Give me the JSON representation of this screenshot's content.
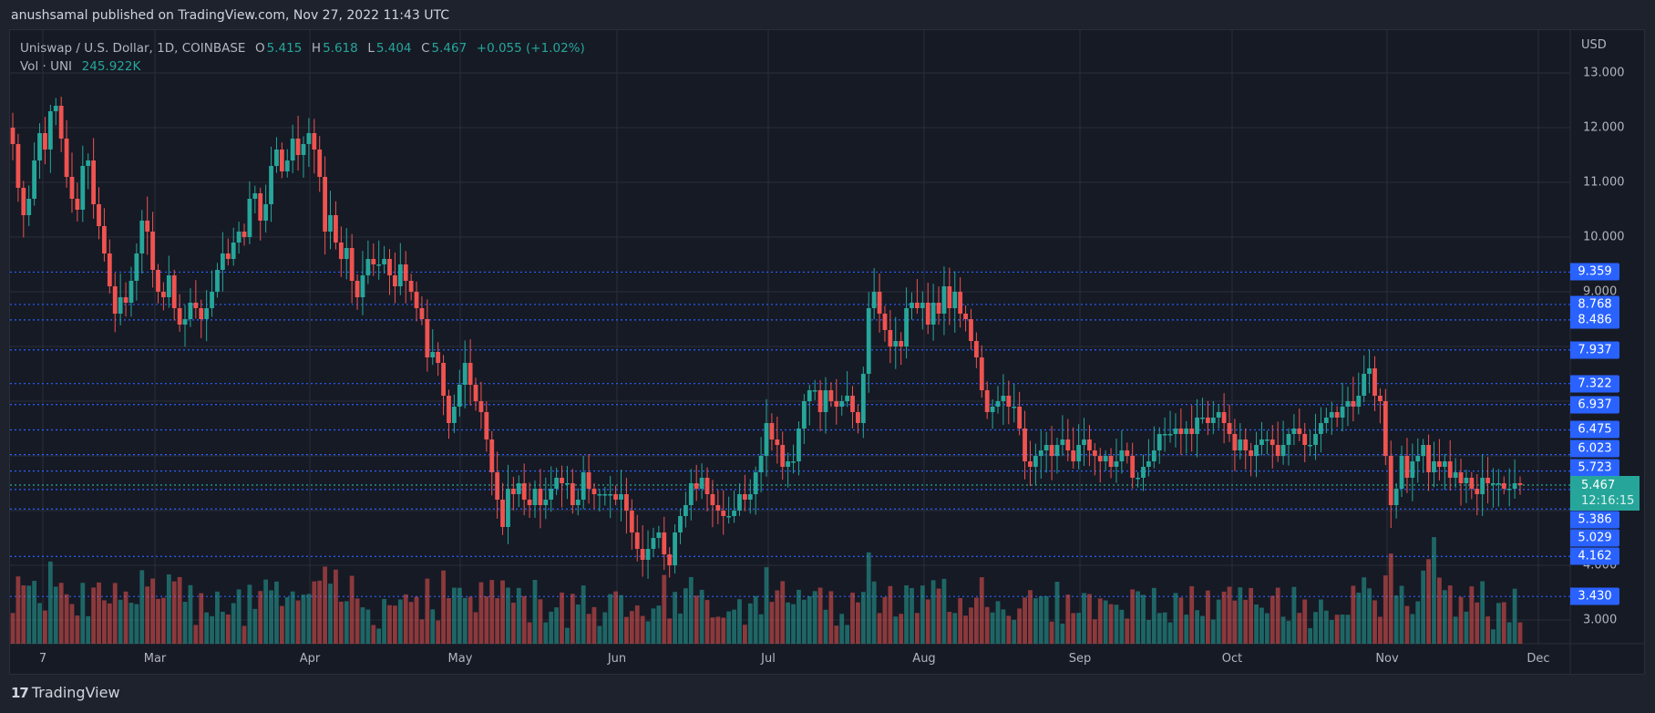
{
  "header": {
    "published": "anushsamal published on TradingView.com, Nov 27, 2022 11:43 UTC"
  },
  "legend": {
    "symbol": "Uniswap / U.S. Dollar, 1D, COINBASE",
    "o_label": "O",
    "o": "5.415",
    "h_label": "H",
    "h": "5.618",
    "l_label": "L",
    "l": "5.404",
    "c_label": "C",
    "c": "5.467",
    "change": "+0.055 (+1.02%)",
    "vol_label": "Vol · UNI",
    "vol": "245.922K"
  },
  "axis": {
    "currency": "USD",
    "price_ticks": [
      "13.000",
      "12.000",
      "11.000",
      "10.000",
      "9.000",
      "4.000",
      "3.000"
    ],
    "time_ticks": [
      "7",
      "Mar",
      "Apr",
      "May",
      "Jun",
      "Jul",
      "Aug",
      "Sep",
      "Oct",
      "Nov",
      "Dec"
    ]
  },
  "current": {
    "price": "5.467",
    "countdown": "12:16:15"
  },
  "levels": [
    "9.359",
    "8.768",
    "8.486",
    "7.937",
    "7.322",
    "6.937",
    "6.475",
    "6.023",
    "5.723",
    "5.386",
    "5.029",
    "4.162",
    "3.430"
  ],
  "footer": {
    "brand": "TradingView",
    "logo": "17"
  },
  "colors": {
    "up": "#26a69a",
    "down": "#ef5350",
    "level": "#2962ff",
    "bg": "#161a25",
    "outer": "#1e222d",
    "grid": "#2a2e39"
  },
  "chart_data": {
    "type": "candlestick",
    "title": "Uniswap / U.S. Dollar, 1D, COINBASE",
    "ylabel": "USD",
    "ylim": [
      2.5,
      13.5
    ],
    "x_range": [
      "2022-02-07",
      "2022-11-27"
    ],
    "categories": [
      "7",
      "Mar",
      "Apr",
      "May",
      "Jun",
      "Jul",
      "Aug",
      "Sep",
      "Oct",
      "Nov",
      "Dec"
    ],
    "closes": [
      11.7,
      10.9,
      10.4,
      10.7,
      11.4,
      11.9,
      11.6,
      12.3,
      12.4,
      11.8,
      11.1,
      10.7,
      10.5,
      11.3,
      11.4,
      10.6,
      10.2,
      9.7,
      9.1,
      8.6,
      8.9,
      8.8,
      9.2,
      9.7,
      10.3,
      10.1,
      9.4,
      9.0,
      8.9,
      9.3,
      8.7,
      8.4,
      8.5,
      8.8,
      8.7,
      8.5,
      8.7,
      9.0,
      9.4,
      9.7,
      9.6,
      9.9,
      10.1,
      10.0,
      10.7,
      10.8,
      10.3,
      10.6,
      11.3,
      11.6,
      11.2,
      11.4,
      11.8,
      11.5,
      11.7,
      11.9,
      11.6,
      11.1,
      10.1,
      10.4,
      9.9,
      9.6,
      9.8,
      9.2,
      8.9,
      9.3,
      9.6,
      9.5,
      9.5,
      9.6,
      9.3,
      9.1,
      9.5,
      9.2,
      9.0,
      8.7,
      8.5,
      7.8,
      7.9,
      7.7,
      7.1,
      6.6,
      6.9,
      7.3,
      7.7,
      7.3,
      7.0,
      6.8,
      6.3,
      5.7,
      5.2,
      4.7,
      5.4,
      5.3,
      5.5,
      5.2,
      5.1,
      5.4,
      5.1,
      5.2,
      5.4,
      5.6,
      5.5,
      5.5,
      5.1,
      5.2,
      5.7,
      5.4,
      5.3,
      5.3,
      5.3,
      5.3,
      5.2,
      5.3,
      5.0,
      4.6,
      4.3,
      4.1,
      4.3,
      4.5,
      4.6,
      4.2,
      4.0,
      4.6,
      4.9,
      5.1,
      5.5,
      5.4,
      5.6,
      5.3,
      5.1,
      5.0,
      4.9,
      4.9,
      5.0,
      5.3,
      5.2,
      5.3,
      5.7,
      6.0,
      6.6,
      6.3,
      6.2,
      5.8,
      5.9,
      5.9,
      6.5,
      7.0,
      7.2,
      7.2,
      6.8,
      7.2,
      7.0,
      6.9,
      7.0,
      7.1,
      6.8,
      6.6,
      7.5,
      8.7,
      9.0,
      8.6,
      8.3,
      8.0,
      8.1,
      8.0,
      8.7,
      8.8,
      8.7,
      8.8,
      8.4,
      8.8,
      8.6,
      9.1,
      8.7,
      9.0,
      8.6,
      8.5,
      8.1,
      7.8,
      7.2,
      6.8,
      6.9,
      7.0,
      7.1,
      6.9,
      6.9,
      6.5,
      5.9,
      5.8,
      6.0,
      6.1,
      6.2,
      6.0,
      6.2,
      6.3,
      6.1,
      5.9,
      6.2,
      6.3,
      6.1,
      6.0,
      5.9,
      6.0,
      5.8,
      5.9,
      6.1,
      6.0,
      5.6,
      5.6,
      5.8,
      5.9,
      6.1,
      6.4,
      6.4,
      6.4,
      6.5,
      6.4,
      6.5,
      6.4,
      6.7,
      6.7,
      6.6,
      6.7,
      6.8,
      6.6,
      6.4,
      6.1,
      6.3,
      6.1,
      6.0,
      6.2,
      6.3,
      6.3,
      6.2,
      6.0,
      6.2,
      6.4,
      6.5,
      6.4,
      6.2,
      6.2,
      6.4,
      6.6,
      6.7,
      6.8,
      6.7,
      6.9,
      7.0,
      6.9,
      7.1,
      7.5,
      7.6,
      7.1,
      7.0,
      6.0,
      5.1,
      5.4,
      6.0,
      5.6,
      5.9,
      6.0,
      6.2,
      5.7,
      5.9,
      5.8,
      5.9,
      5.6,
      5.7,
      5.5,
      5.6,
      5.4,
      5.3,
      5.6,
      5.5,
      5.5,
      5.5,
      5.4,
      5.4,
      5.5,
      5.467
    ]
  }
}
